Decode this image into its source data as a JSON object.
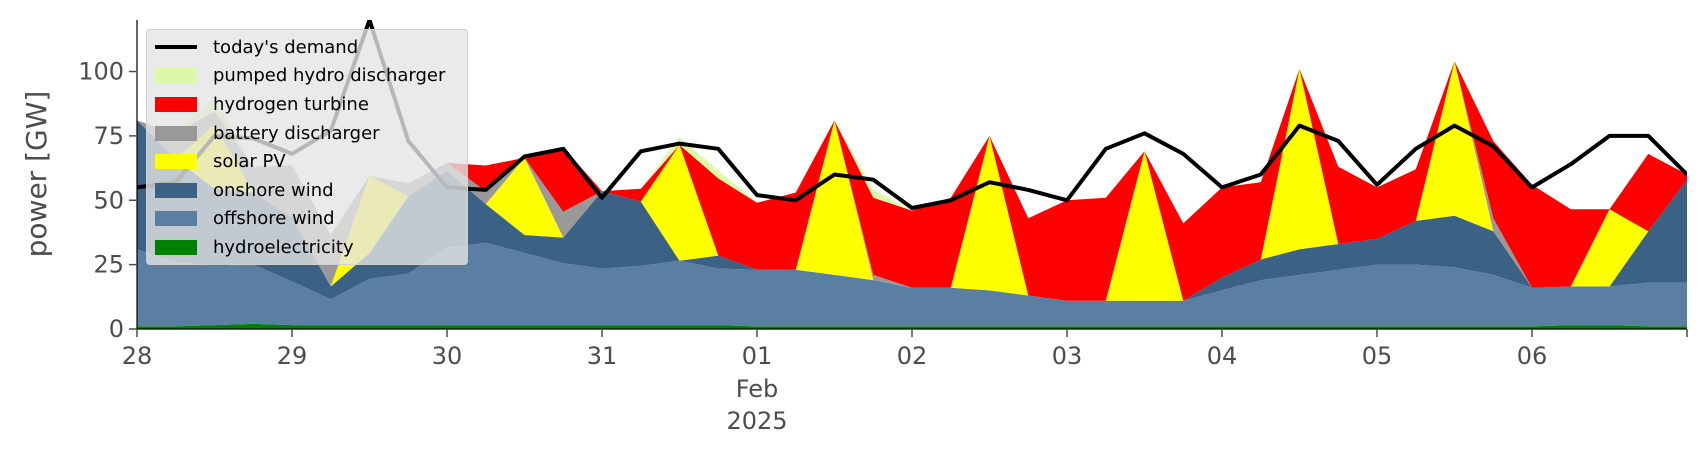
{
  "chart_data": {
    "type": "area",
    "stacked": true,
    "xlabel": "",
    "ylabel": "power [GW]",
    "ylim": [
      0,
      120
    ],
    "xlim": [
      "2025-01-28",
      "2025-02-07"
    ],
    "yticks": [
      0,
      25,
      50,
      75,
      100
    ],
    "xticks": [
      {
        "value": "2025-01-28",
        "label": "28"
      },
      {
        "value": "2025-01-29",
        "label": "29"
      },
      {
        "value": "2025-01-30",
        "label": "30"
      },
      {
        "value": "2025-01-31",
        "label": "31"
      },
      {
        "value": "2025-02-01",
        "label": "01"
      },
      {
        "value": "2025-02-02",
        "label": "02"
      },
      {
        "value": "2025-02-03",
        "label": "03"
      },
      {
        "value": "2025-02-04",
        "label": "04"
      },
      {
        "value": "2025-02-05",
        "label": "05"
      },
      {
        "value": "2025-02-06",
        "label": "06"
      }
    ],
    "xtick_sub": {
      "month": "Feb",
      "year": "2025"
    },
    "grid": false,
    "legend_position": "top-left",
    "x": [
      "2025-01-28 00:00",
      "2025-01-28 06:00",
      "2025-01-28 12:00",
      "2025-01-28 18:00",
      "2025-01-29 00:00",
      "2025-01-29 06:00",
      "2025-01-29 12:00",
      "2025-01-29 18:00",
      "2025-01-30 00:00",
      "2025-01-30 06:00",
      "2025-01-30 12:00",
      "2025-01-30 18:00",
      "2025-01-31 00:00",
      "2025-01-31 06:00",
      "2025-01-31 12:00",
      "2025-01-31 18:00",
      "2025-02-01 00:00",
      "2025-02-01 06:00",
      "2025-02-01 12:00",
      "2025-02-01 18:00",
      "2025-02-02 00:00",
      "2025-02-02 06:00",
      "2025-02-02 12:00",
      "2025-02-02 18:00",
      "2025-02-03 00:00",
      "2025-02-03 06:00",
      "2025-02-03 12:00",
      "2025-02-03 18:00",
      "2025-02-04 00:00",
      "2025-02-04 06:00",
      "2025-02-04 12:00",
      "2025-02-04 18:00",
      "2025-02-05 00:00",
      "2025-02-05 06:00",
      "2025-02-05 12:00",
      "2025-02-05 18:00",
      "2025-02-06 00:00",
      "2025-02-06 06:00",
      "2025-02-06 12:00",
      "2025-02-06 18:00",
      "2025-02-07 00:00"
    ],
    "series": [
      {
        "name": "hydroelectricity",
        "color": "#008000",
        "values": [
          1,
          1,
          1.5,
          2,
          1.5,
          1.5,
          1.5,
          1.5,
          1.5,
          1.5,
          1.5,
          1.5,
          1.5,
          1.5,
          1.5,
          1.5,
          1,
          1,
          1,
          1,
          1,
          1,
          1,
          1,
          1,
          1,
          1,
          1,
          1,
          1,
          1,
          1,
          1,
          1,
          1,
          1,
          1,
          1.5,
          1.5,
          1,
          1
        ]
      },
      {
        "name": "offshore wind",
        "color": "#5b7fa3",
        "values": [
          30,
          25,
          23,
          23,
          17,
          10,
          18,
          20,
          30,
          32,
          28,
          24,
          22,
          23,
          25,
          22,
          22,
          22,
          20,
          18,
          15,
          15,
          14,
          12,
          10,
          10,
          10,
          10,
          14,
          18,
          20,
          22,
          24,
          24,
          23,
          20,
          15,
          15,
          15,
          17,
          17
        ]
      },
      {
        "name": "onshore wind",
        "color": "#3b6184",
        "values": [
          50,
          40,
          30,
          28,
          25,
          5,
          10,
          30,
          30,
          15,
          7,
          10,
          30,
          25,
          0,
          5,
          0,
          0,
          0,
          0,
          0,
          0,
          0,
          0,
          0,
          0,
          0,
          0,
          5,
          8,
          10,
          10,
          10,
          17,
          20,
          17,
          0,
          0,
          0,
          20,
          40
        ]
      },
      {
        "name": "solar PV",
        "color": "#ffff00",
        "values": [
          0,
          0,
          25,
          0,
          0,
          0,
          30,
          0,
          0,
          0,
          30,
          0,
          0,
          0,
          45,
          0,
          0,
          0,
          60,
          0,
          0,
          0,
          60,
          0,
          0,
          0,
          58,
          0,
          0,
          0,
          70,
          0,
          0,
          0,
          60,
          0,
          0,
          0,
          30,
          0,
          0
        ]
      },
      {
        "name": "battery discharger",
        "color": "#999999",
        "values": [
          0,
          10,
          5,
          10,
          20,
          20,
          0,
          5,
          3,
          5,
          0,
          10,
          0,
          0,
          0,
          0,
          0,
          0,
          0,
          2,
          0,
          0,
          0,
          0,
          0,
          0,
          0,
          0,
          0,
          0,
          0,
          0,
          0,
          0,
          0,
          5,
          0,
          0,
          0,
          0,
          0
        ]
      },
      {
        "name": "hydrogen turbine",
        "color": "#ff0000",
        "values": [
          0,
          0,
          0,
          0,
          0,
          0,
          0,
          0,
          0,
          10,
          0,
          25,
          0,
          5,
          0,
          30,
          26,
          30,
          0,
          30,
          30,
          35,
          0,
          30,
          39,
          40,
          0,
          30,
          35,
          30,
          0,
          30,
          20,
          20,
          0,
          30,
          40,
          30,
          0,
          30,
          2
        ]
      },
      {
        "name": "pumped hydro discharger",
        "color": "#dcf9a8",
        "values": [
          0,
          0,
          5,
          0,
          0,
          0,
          0,
          0,
          0,
          0,
          0,
          0,
          0,
          0,
          3,
          3,
          0,
          0,
          0,
          3,
          0,
          0,
          0,
          0,
          0,
          0,
          0,
          0,
          0,
          0,
          0,
          0,
          0,
          0,
          0,
          0,
          0,
          0,
          0,
          0,
          0
        ]
      },
      {
        "name": "today's demand",
        "color": "#000000",
        "kind": "line",
        "values": [
          55,
          57,
          75,
          74,
          68,
          77,
          120,
          73,
          55,
          54,
          67,
          70,
          51,
          69,
          72,
          70,
          52,
          50,
          60,
          58,
          47,
          50,
          57,
          54,
          50,
          70,
          76,
          68,
          55,
          60,
          79,
          73,
          56,
          70,
          79,
          71,
          55,
          64,
          75,
          75,
          60
        ]
      }
    ]
  }
}
